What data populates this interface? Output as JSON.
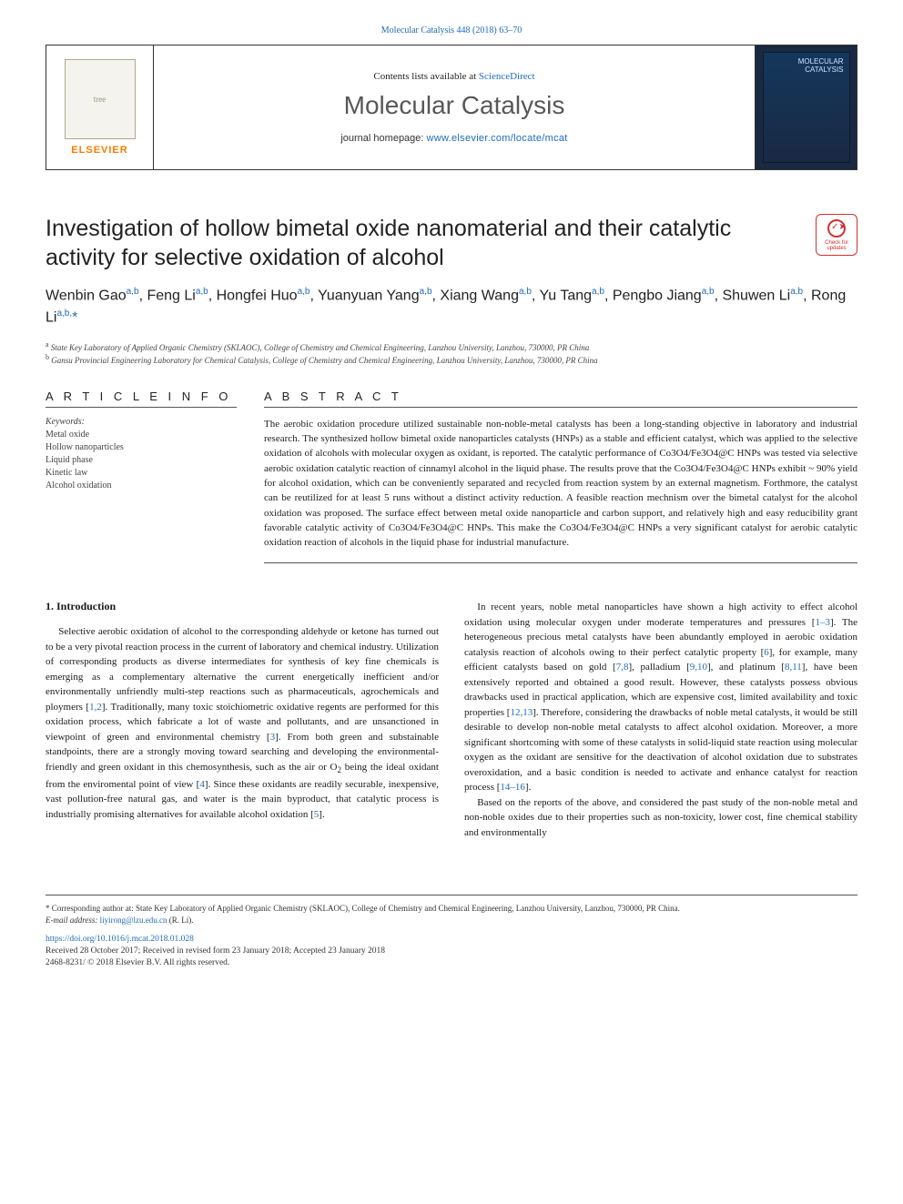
{
  "colors": {
    "link": "#1f6bb8",
    "text": "#1a1a1a",
    "muted": "#585858",
    "orange": "#ff7a00",
    "rule": "#555555",
    "cover_bg": "#1a2942",
    "check_red": "#cc3333"
  },
  "top_link": "Molecular Catalysis 448 (2018) 63–70",
  "masthead": {
    "publisher": "ELSEVIER",
    "contents_prefix": "Contents lists available at ",
    "contents_link": "ScienceDirect",
    "journal": "Molecular Catalysis",
    "homepage_prefix": "journal homepage: ",
    "homepage_url": "www.elsevier.com/locate/mcat",
    "cover_label": "MOLECULAR\nCATALYSIS"
  },
  "title": "Investigation of hollow bimetal oxide nanomaterial and their catalytic activity for selective oxidation of alcohol",
  "check_updates": "Check for updates",
  "authors_html": "Wenbin Gao<sup>a,b</sup>, Feng Li<sup>a,b</sup>, Hongfei Huo<sup>a,b</sup>, Yuanyuan Yang<sup>a,b</sup>, Xiang Wang<sup>a,b</sup>, Yu Tang<sup>a,b</sup>, Pengbo Jiang<sup>a,b</sup>, Shuwen Li<sup>a,b</sup>, Rong Li<sup>a,b,</sup><span class='star'>*</span>",
  "affiliations": [
    {
      "key": "a",
      "text": "State Key Laboratory of Applied Organic Chemistry (SKLAOC), College of Chemistry and Chemical Engineering, Lanzhou University, Lanzhou, 730000, PR China"
    },
    {
      "key": "b",
      "text": "Gansu Provincial Engineering Laboratory for Chemical Catalysis, College of Chemistry and Chemical Engineering, Lanzhou University, Lanzhou, 730000, PR China"
    }
  ],
  "article_info": {
    "heading": "A R T I C L E  I N F O",
    "kw_label": "Keywords:",
    "keywords": [
      "Metal oxide",
      "Hollow nanoparticles",
      "Liquid phase",
      "Kinetic law",
      "Alcohol oxidation"
    ]
  },
  "abstract": {
    "heading": "A B S T R A C T",
    "text": "The aerobic oxidation procedure utilized sustainable non-noble-metal catalysts has been a long-standing objective in laboratory and industrial research. The synthesized hollow bimetal oxide nanoparticles catalysts (HNPs) as a stable and efficient catalyst, which was applied to the selective oxidation of alcohols with molecular oxygen as oxidant, is reported. The catalytic performance of Co3O4/Fe3O4@C HNPs was tested via selective aerobic oxidation catalytic reaction of cinnamyl alcohol in the liquid phase. The results prove that the Co3O4/Fe3O4@C HNPs exhibit ~ 90% yield for alcohol oxidation, which can be conveniently separated and recycled from reaction system by an external magnetism. Forthmore, the catalyst can be reutilized for at least 5 runs without a distinct activity reduction. A feasible reaction mechnism over the bimetal catalyst for the alcohol oxidation was proposed. The surface effect between metal oxide nanoparticle and carbon support, and relatively high and easy reducibility grant favorable catalytic activity of Co3O4/Fe3O4@C HNPs. This make the Co3O4/Fe3O4@C HNPs a very significant catalyst for aerobic catalytic oxidation reaction of alcohols in the liquid phase for industrial manufacture."
  },
  "intro": {
    "heading": "1. Introduction",
    "paras_left": [
      "Selective aerobic oxidation of alcohol to the corresponding aldehyde or ketone has turned out to be a very pivotal reaction process in the current of laboratory and chemical industry. Utilization of corresponding products as diverse intermediates for synthesis of key fine chemicals is emerging as a complementary alternative the current energetically inefficient and/or environmentally unfriendly multi-step reactions such as pharmaceuticals, agrochemicals and ploymers [<a href='#'>1,2</a>]. Traditionally, many toxic stoichiometric oxidative regents are performed for this oxidation process, which fabricate a lot of waste and pollutants, and are unsanctioned in viewpoint of green and environmental chemistry [<a href='#'>3</a>]. From both green and substainable standpoints, there are a strongly moving toward searching and developing the environmental-friendly and green oxidant in this chemosynthesis, such as the air or O<sub>2</sub> being the ideal oxidant from the enviromental point of view [<a href='#'>4</a>]. Since these oxidants are readily securable, inexpensive, vast pollution-free natural gas, and water is the main byproduct, that catalytic process is industrially promising alternatives for available alcohol oxidation [<a href='#'>5</a>]."
    ],
    "paras_right": [
      "In recent years, noble metal nanoparticles have shown a high activity to effect alcohol oxidation using molecular oxygen under moderate temperatures and pressures [<a href='#'>1–3</a>]. The heterogeneous precious metal catalysts have been abundantly employed in aerobic oxidation catalysis reaction of alcohols owing to their perfect catalytic property [<a href='#'>6</a>], for example, many efficient catalysts based on gold [<a href='#'>7,8</a>], palladium [<a href='#'>9,10</a>], and platinum [<a href='#'>8,11</a>], have been extensively reported and obtained a good result. However, these catalysts possess obvious drawbacks used in practical application, which are expensive cost, limited availability and toxic properties [<a href='#'>12,13</a>]. Therefore, considering the drawbacks of noble metal catalysts, it would be still desirable to develop non-noble metal catalysts to affect alcohol oxidation. Moreover, a more significant shortcoming with some of these catalysts in solid-liquid state reaction using molecular oxygen as the oxidant are sensitive for the deactivation of alcohol oxidation due to substrates overoxidation, and a basic condition is needed to activate and enhance catalyst for reaction process [<a href='#'>14–16</a>].",
      "Based on the reports of the above, and considered the past study of the non-noble metal and non-noble oxides due to their properties such as non-toxicity, lower cost, fine chemical stability and environmentally"
    ]
  },
  "footnotes": {
    "corresponding": "* Corresponding author at: State Key Laboratory of Applied Organic Chemistry (SKLAOC), College of Chemistry and Chemical Engineering, Lanzhou University, Lanzhou, 730000, PR China.",
    "email_label": "E-mail address: ",
    "email": "liyirong@lzu.edu.cn",
    "email_who": " (R. Li).",
    "doi": "https://doi.org/10.1016/j.mcat.2018.01.028",
    "history": "Received 28 October 2017; Received in revised form 23 January 2018; Accepted 23 January 2018",
    "copyright": "2468-8231/ © 2018 Elsevier B.V. All rights reserved."
  }
}
